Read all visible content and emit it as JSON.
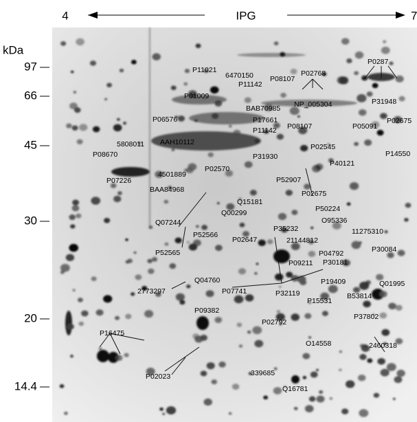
{
  "header": {
    "left": "4",
    "title": "IPG",
    "right": "7"
  },
  "mw_axis": {
    "unit": "kDa",
    "markers": [
      "97",
      "66",
      "45",
      "30",
      "20",
      "14.4"
    ]
  },
  "labels": [
    "P0287",
    "P11021",
    "6470150",
    "P08107",
    "P02768",
    "P11142",
    "P01009",
    "P31948",
    "BAB70985",
    "NP_005304",
    "P02675",
    "P06576",
    "P17661",
    "P11142",
    "P08107",
    "P05091",
    "AAH10112",
    "5808011",
    "P08670",
    "P02545",
    "P14550",
    "P31930",
    "P40121",
    "P02570",
    "4501889",
    "P07226",
    "P52907",
    "BAA84968",
    "P02675",
    "Q15181",
    "P50224",
    "Q00299",
    "Q07244",
    "O95336",
    "P35232",
    "11275310",
    "P52566",
    "P02647",
    "21144812",
    "P52565",
    "P04792",
    "P30084",
    "P09211",
    "P30181",
    "Q04760",
    "P19409",
    "2773297",
    "P07741",
    "P32119",
    "P15531",
    "B53814",
    "Q01995",
    "P09382",
    "P02792",
    "P37802",
    "P16475",
    "O14558",
    "2460318",
    "P02023",
    "339685",
    "Q16781"
  ]
}
